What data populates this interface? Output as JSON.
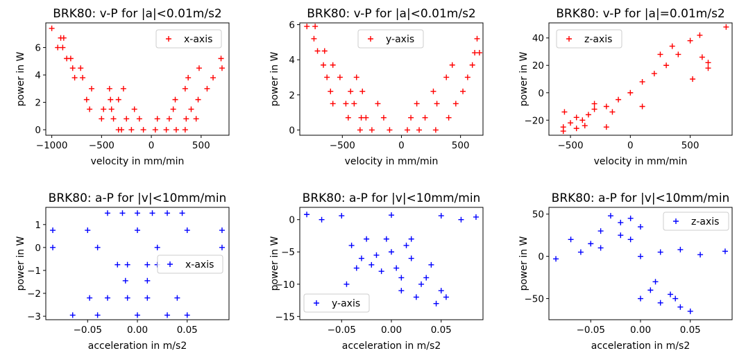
{
  "chart_data": [
    {
      "type": "scatter",
      "title": "BRK80: v-P for |a|<0.01m/s2",
      "xlabel": "velocity in mm/min",
      "ylabel": "power in W",
      "xlim": [
        -1060,
        780
      ],
      "ylim": [
        -0.4,
        7.8
      ],
      "xticks": [
        -1000,
        -500,
        0,
        500
      ],
      "xtick_labels": [
        "−1000",
        "−500",
        "0",
        "500"
      ],
      "yticks": [
        0,
        2,
        4,
        6
      ],
      "ytick_labels": [
        "0",
        "2",
        "4",
        "6"
      ],
      "legend_position": "upper-right",
      "color": "#ff0000",
      "series": [
        {
          "name": "x-axis",
          "points": [
            [
              -1000,
              7.4
            ],
            [
              -910,
              6.7
            ],
            [
              -880,
              6.7
            ],
            [
              -940,
              6.0
            ],
            [
              -890,
              6.0
            ],
            [
              -850,
              5.2
            ],
            [
              -810,
              5.2
            ],
            [
              -790,
              4.5
            ],
            [
              -710,
              4.5
            ],
            [
              -770,
              3.8
            ],
            [
              -690,
              3.8
            ],
            [
              -600,
              3.0
            ],
            [
              -420,
              3.0
            ],
            [
              -650,
              2.2
            ],
            [
              -410,
              2.2
            ],
            [
              -620,
              1.5
            ],
            [
              -480,
              1.5
            ],
            [
              -500,
              0.8
            ],
            [
              -380,
              0.8
            ],
            [
              -330,
              0.0
            ],
            [
              -300,
              0.0
            ],
            [
              -200,
              0.0
            ],
            [
              -80,
              0.0
            ],
            [
              40,
              0.0
            ],
            [
              150,
              0.0
            ],
            [
              250,
              0.0
            ],
            [
              340,
              0.0
            ],
            [
              -250,
              0.8
            ],
            [
              -120,
              0.8
            ],
            [
              60,
              0.8
            ],
            [
              180,
              0.8
            ],
            [
              350,
              0.8
            ],
            [
              450,
              0.8
            ],
            [
              -400,
              1.5
            ],
            [
              -170,
              1.5
            ],
            [
              220,
              1.5
            ],
            [
              400,
              1.5
            ],
            [
              -330,
              2.2
            ],
            [
              240,
              2.2
            ],
            [
              470,
              2.2
            ],
            [
              -280,
              3.0
            ],
            [
              340,
              3.0
            ],
            [
              560,
              3.0
            ],
            [
              370,
              3.8
            ],
            [
              620,
              3.8
            ],
            [
              480,
              4.5
            ],
            [
              710,
              4.5
            ],
            [
              700,
              5.2
            ]
          ]
        }
      ]
    },
    {
      "type": "scatter",
      "title": "BRK80: v-P for |a|<0.01m/s2",
      "xlabel": "velocity in mm/min",
      "ylabel": "power in W",
      "xlim": [
        -860,
        690
      ],
      "ylim": [
        -0.3,
        6.1
      ],
      "xticks": [
        -500,
        0,
        500
      ],
      "xtick_labels": [
        "−500",
        "0",
        "500"
      ],
      "yticks": [
        0,
        2,
        4,
        6
      ],
      "ytick_labels": [
        "0",
        "2",
        "4",
        "6"
      ],
      "legend_position": "upper-center",
      "color": "#ff0000",
      "series": [
        {
          "name": "y-axis",
          "points": [
            [
              -800,
              5.9
            ],
            [
              -730,
              5.9
            ],
            [
              -740,
              5.2
            ],
            [
              -710,
              4.5
            ],
            [
              -650,
              4.5
            ],
            [
              -660,
              3.7
            ],
            [
              -580,
              3.7
            ],
            [
              -630,
              3.0
            ],
            [
              -520,
              3.0
            ],
            [
              -600,
              2.2
            ],
            [
              -430,
              2.2
            ],
            [
              -580,
              1.5
            ],
            [
              -470,
              1.5
            ],
            [
              -450,
              0.7
            ],
            [
              -340,
              0.7
            ],
            [
              -350,
              0.0
            ],
            [
              -250,
              0.0
            ],
            [
              -100,
              0.0
            ],
            [
              50,
              0.0
            ],
            [
              150,
              0.0
            ],
            [
              290,
              0.0
            ],
            [
              -300,
              0.7
            ],
            [
              -150,
              0.7
            ],
            [
              80,
              0.7
            ],
            [
              200,
              0.7
            ],
            [
              400,
              0.7
            ],
            [
              -400,
              1.5
            ],
            [
              -200,
              1.5
            ],
            [
              130,
              1.5
            ],
            [
              300,
              1.5
            ],
            [
              460,
              1.5
            ],
            [
              -330,
              2.2
            ],
            [
              270,
              2.2
            ],
            [
              520,
              2.2
            ],
            [
              -380,
              3.0
            ],
            [
              380,
              3.0
            ],
            [
              560,
              3.0
            ],
            [
              430,
              3.7
            ],
            [
              600,
              3.7
            ],
            [
              620,
              4.4
            ],
            [
              660,
              4.4
            ],
            [
              640,
              5.2
            ]
          ]
        }
      ]
    },
    {
      "type": "scatter",
      "title": "BRK80: v-P for |a|=0.01m/s2",
      "xlabel": "velocity in mm/min",
      "ylabel": "power in W",
      "xlim": [
        -680,
        850
      ],
      "ylim": [
        -31,
        51
      ],
      "xticks": [
        -500,
        0,
        500
      ],
      "xtick_labels": [
        "−500",
        "0",
        "500"
      ],
      "yticks": [
        -20,
        0,
        20,
        40
      ],
      "ytick_labels": [
        "−20",
        "0",
        "20",
        "40"
      ],
      "legend_position": "upper-left",
      "color": "#ff0000",
      "series": [
        {
          "name": "z-axis",
          "points": [
            [
              -560,
              -28
            ],
            [
              -560,
              -25
            ],
            [
              -500,
              -22
            ],
            [
              -450,
              -18
            ],
            [
              -400,
              -20
            ],
            [
              -350,
              -16
            ],
            [
              -300,
              -12
            ],
            [
              -200,
              -10
            ],
            [
              -100,
              -5
            ],
            [
              0,
              0
            ],
            [
              100,
              8
            ],
            [
              200,
              14
            ],
            [
              300,
              20
            ],
            [
              400,
              28
            ],
            [
              500,
              38
            ],
            [
              600,
              26
            ],
            [
              650,
              22
            ],
            [
              650,
              18
            ],
            [
              -450,
              -26
            ],
            [
              -200,
              -25
            ],
            [
              -300,
              -8
            ],
            [
              100,
              -10
            ],
            [
              -550,
              -14
            ],
            [
              800,
              48
            ],
            [
              580,
              42
            ],
            [
              520,
              10
            ],
            [
              -380,
              -24
            ],
            [
              -150,
              -14
            ],
            [
              250,
              28
            ],
            [
              350,
              34
            ]
          ]
        }
      ]
    },
    {
      "type": "scatter",
      "title": "BRK80: a-P for |v|<10mm/min",
      "xlabel": "acceleration in m/s2",
      "ylabel": "power in W",
      "xlim": [
        -0.092,
        0.092
      ],
      "ylim": [
        -3.15,
        1.75
      ],
      "xticks": [
        -0.05,
        0.0,
        0.05
      ],
      "xtick_labels": [
        "−0.05",
        "0.00",
        "0.05"
      ],
      "yticks": [
        -3,
        -2,
        -1,
        0,
        1
      ],
      "ytick_labels": [
        "−3",
        "−2",
        "−1",
        "0",
        "1"
      ],
      "legend_position": "center-right",
      "color": "#0000ff",
      "series": [
        {
          "name": "x-axis",
          "points": [
            [
              -0.085,
              0.75
            ],
            [
              -0.05,
              0.75
            ],
            [
              0.0,
              0.75
            ],
            [
              0.05,
              0.75
            ],
            [
              0.085,
              0.75
            ],
            [
              -0.085,
              0.0
            ],
            [
              -0.04,
              0.0
            ],
            [
              0.02,
              0.0
            ],
            [
              0.085,
              0.0
            ],
            [
              -0.03,
              1.5
            ],
            [
              -0.015,
              1.5
            ],
            [
              0.0,
              1.5
            ],
            [
              0.015,
              1.5
            ],
            [
              0.03,
              1.5
            ],
            [
              0.045,
              1.5
            ],
            [
              -0.02,
              -0.75
            ],
            [
              -0.01,
              -0.75
            ],
            [
              0.01,
              -0.75
            ],
            [
              0.02,
              -0.75
            ],
            [
              -0.012,
              -1.45
            ],
            [
              0.01,
              -1.45
            ],
            [
              -0.048,
              -2.2
            ],
            [
              -0.03,
              -2.2
            ],
            [
              -0.01,
              -2.2
            ],
            [
              0.01,
              -2.2
            ],
            [
              0.04,
              -2.2
            ],
            [
              -0.065,
              -2.95
            ],
            [
              -0.04,
              -2.95
            ],
            [
              0.0,
              -2.95
            ],
            [
              0.03,
              -2.95
            ],
            [
              0.05,
              -2.95
            ]
          ]
        }
      ]
    },
    {
      "type": "scatter",
      "title": "BRK80: a-P for |v|<10mm/min",
      "xlabel": "acceleration in m/s2",
      "ylabel": "power in W",
      "xlim": [
        -0.092,
        0.092
      ],
      "ylim": [
        -15.5,
        1.9
      ],
      "xticks": [
        -0.05,
        0.0,
        0.05
      ],
      "xtick_labels": [
        "−0.05",
        "0.00",
        "0.05"
      ],
      "yticks": [
        -15,
        -10,
        -5,
        0
      ],
      "ytick_labels": [
        "−15",
        "−10",
        "−5",
        "0"
      ],
      "legend_position": "lower-left",
      "color": "#0000ff",
      "series": [
        {
          "name": "y-axis",
          "points": [
            [
              -0.085,
              0.8
            ],
            [
              -0.05,
              0.6
            ],
            [
              0.0,
              0.7
            ],
            [
              0.05,
              0.6
            ],
            [
              0.085,
              0.4
            ],
            [
              -0.07,
              0.0
            ],
            [
              0.07,
              0.0
            ],
            [
              -0.04,
              -4
            ],
            [
              -0.03,
              -6
            ],
            [
              -0.02,
              -7
            ],
            [
              -0.01,
              -8
            ],
            [
              0.0,
              -5
            ],
            [
              0.01,
              -9
            ],
            [
              0.02,
              -6
            ],
            [
              0.03,
              -10
            ],
            [
              0.04,
              -7
            ],
            [
              0.05,
              -11
            ],
            [
              -0.045,
              -10
            ],
            [
              -0.025,
              -3
            ],
            [
              -0.005,
              -3
            ],
            [
              0.015,
              -4
            ],
            [
              0.025,
              -12
            ],
            [
              0.045,
              -13
            ],
            [
              0.055,
              -12
            ],
            [
              -0.015,
              -5.5
            ],
            [
              0.005,
              -7.5
            ],
            [
              0.035,
              -9
            ],
            [
              -0.035,
              -7.5
            ],
            [
              0.02,
              -3
            ],
            [
              0.01,
              -11
            ]
          ]
        }
      ]
    },
    {
      "type": "scatter",
      "title": "BRK80: a-P for |v|<10mm/min",
      "xlabel": "acceleration in m/s2",
      "ylabel": "power in W",
      "xlim": [
        -0.092,
        0.092
      ],
      "ylim": [
        -75,
        58
      ],
      "xticks": [
        -0.05,
        0.0,
        0.05
      ],
      "xtick_labels": [
        "−0.05",
        "0.00",
        "0.05"
      ],
      "yticks": [
        -50,
        0,
        50
      ],
      "ytick_labels": [
        "−50",
        "0",
        "50"
      ],
      "legend_position": "upper-right",
      "color": "#0000ff",
      "series": [
        {
          "name": "z-axis",
          "points": [
            [
              -0.085,
              -3
            ],
            [
              -0.06,
              5
            ],
            [
              -0.04,
              10
            ],
            [
              -0.02,
              25
            ],
            [
              -0.01,
              20
            ],
            [
              0.0,
              0
            ],
            [
              0.02,
              5
            ],
            [
              0.04,
              8
            ],
            [
              0.06,
              2
            ],
            [
              0.085,
              6
            ],
            [
              -0.07,
              20
            ],
            [
              -0.04,
              30
            ],
            [
              -0.02,
              40
            ],
            [
              -0.01,
              45
            ],
            [
              0.0,
              35
            ],
            [
              -0.03,
              48
            ],
            [
              -0.05,
              15
            ],
            [
              0.0,
              -50
            ],
            [
              0.01,
              -40
            ],
            [
              0.02,
              -55
            ],
            [
              0.03,
              -45
            ],
            [
              0.04,
              -60
            ],
            [
              0.05,
              -65
            ],
            [
              0.015,
              -30
            ],
            [
              0.035,
              -50
            ]
          ]
        }
      ]
    }
  ]
}
